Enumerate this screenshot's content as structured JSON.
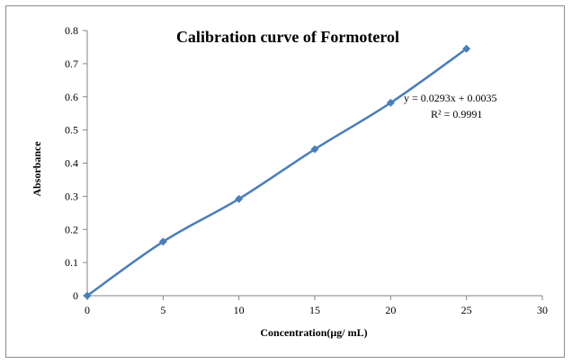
{
  "chart_data": {
    "type": "scatter",
    "title": "Calibration curve of Formoterol",
    "xlabel": "Concentration(µg/ mL)",
    "ylabel": "Absorbance",
    "xlim": [
      0,
      30
    ],
    "ylim": [
      0,
      0.8
    ],
    "x_ticks": [
      "0",
      "5",
      "10",
      "15",
      "20",
      "25",
      "30"
    ],
    "y_ticks": [
      "0",
      "0.1",
      "0.2",
      "0.3",
      "0.4",
      "0.5",
      "0.6",
      "0.7",
      "0.8"
    ],
    "grid": false,
    "legend": "none",
    "series": [
      {
        "x": [
          0,
          5,
          10,
          15,
          20,
          25
        ],
        "y": [
          0,
          0.163,
          0.292,
          0.442,
          0.582,
          0.745
        ],
        "marker": "diamond",
        "line": "smooth",
        "color": "#4a7ebb"
      }
    ],
    "annotations": {
      "equation": "y = 0.0293x + 0.0035",
      "r_squared": "R² = 0.9991"
    }
  }
}
